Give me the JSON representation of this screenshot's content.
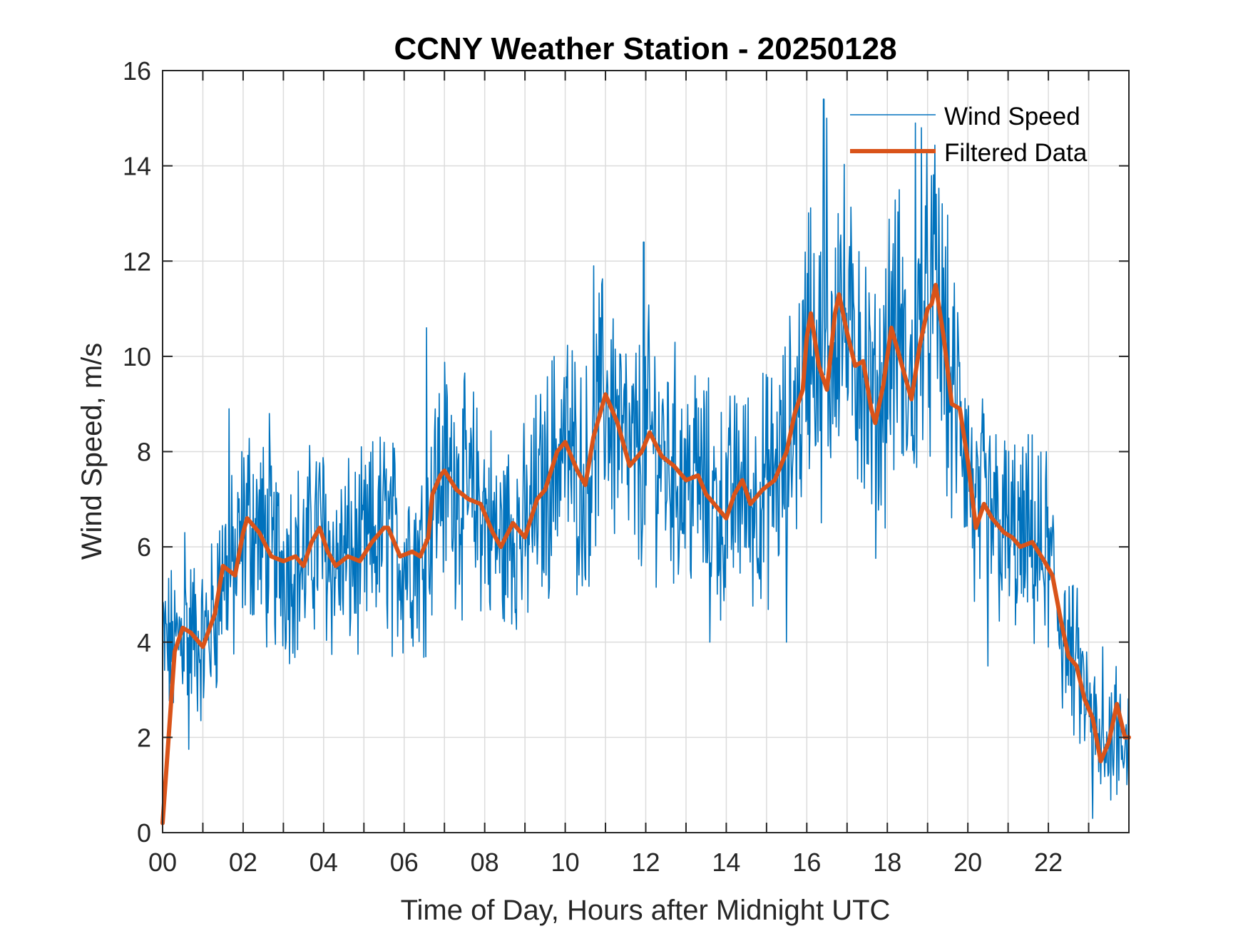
{
  "chart_data": {
    "type": "line",
    "title": "CCNY Weather Station - 20250128",
    "xlabel": "Time of Day, Hours after Midnight UTC",
    "ylabel": "Wind Speed, m/s",
    "xlim": [
      0,
      24
    ],
    "ylim": [
      0,
      16
    ],
    "grid": true,
    "x_grid_step_hours": 1,
    "x_ticks": [
      0,
      2,
      4,
      6,
      8,
      10,
      12,
      14,
      16,
      18,
      20,
      22
    ],
    "x_tick_labels": [
      "00",
      "02",
      "04",
      "06",
      "08",
      "10",
      "12",
      "14",
      "16",
      "18",
      "20",
      "22"
    ],
    "y_ticks": [
      0,
      2,
      4,
      6,
      8,
      10,
      12,
      14,
      16
    ],
    "y_tick_labels": [
      "0",
      "2",
      "4",
      "6",
      "8",
      "10",
      "12",
      "14",
      "16"
    ],
    "legend": {
      "position": "top-right",
      "entries": [
        "Wind Speed",
        "Filtered Data"
      ]
    },
    "colors": {
      "wind_speed": "#0072BD",
      "filtered": "#D95319",
      "axes": "#262626",
      "grid": "#dcdcdc"
    },
    "series": [
      {
        "name": "Wind Speed",
        "style": "thin",
        "note": "high-frequency raw samples; approximated as filtered curve plus noise, with notable extremes listed",
        "noise_amplitude_ms": 1.6,
        "notable_points": [
          {
            "x": 0.55,
            "y": 6.3
          },
          {
            "x": 0.65,
            "y": 1.75
          },
          {
            "x": 1.65,
            "y": 8.9
          },
          {
            "x": 2.65,
            "y": 8.8
          },
          {
            "x": 5.7,
            "y": 3.7
          },
          {
            "x": 6.55,
            "y": 10.6
          },
          {
            "x": 7.3,
            "y": 8.1
          },
          {
            "x": 10.7,
            "y": 11.9
          },
          {
            "x": 11.95,
            "y": 12.4
          },
          {
            "x": 13.6,
            "y": 4.0
          },
          {
            "x": 15.5,
            "y": 4.0
          },
          {
            "x": 16.42,
            "y": 15.4
          },
          {
            "x": 16.5,
            "y": 15.0
          },
          {
            "x": 17.3,
            "y": 12.2
          },
          {
            "x": 18.3,
            "y": 13.5
          },
          {
            "x": 18.7,
            "y": 14.9
          },
          {
            "x": 18.85,
            "y": 14.8
          },
          {
            "x": 19.45,
            "y": 12.3
          },
          {
            "x": 20.5,
            "y": 3.5
          },
          {
            "x": 21.95,
            "y": 8.0
          },
          {
            "x": 23.1,
            "y": 0.3
          },
          {
            "x": 23.35,
            "y": 3.9
          },
          {
            "x": 23.7,
            "y": 0.8
          }
        ]
      },
      {
        "name": "Filtered Data",
        "style": "thick",
        "x": [
          0.0,
          0.3,
          0.5,
          0.7,
          1.0,
          1.3,
          1.5,
          1.8,
          2.0,
          2.1,
          2.4,
          2.7,
          3.0,
          3.3,
          3.5,
          3.7,
          3.9,
          4.1,
          4.3,
          4.6,
          4.9,
          5.2,
          5.5,
          5.6,
          5.9,
          6.2,
          6.4,
          6.6,
          6.7,
          6.9,
          7.0,
          7.3,
          7.6,
          7.9,
          8.2,
          8.4,
          8.7,
          9.0,
          9.3,
          9.5,
          9.8,
          10.0,
          10.3,
          10.5,
          10.7,
          11.0,
          11.3,
          11.6,
          11.9,
          12.1,
          12.4,
          12.7,
          13.0,
          13.3,
          13.5,
          13.8,
          14.0,
          14.2,
          14.4,
          14.6,
          14.9,
          15.2,
          15.5,
          15.7,
          15.9,
          16.0,
          16.1,
          16.3,
          16.5,
          16.7,
          16.8,
          17.0,
          17.2,
          17.4,
          17.6,
          17.7,
          17.9,
          18.1,
          18.4,
          18.6,
          18.8,
          19.0,
          19.1,
          19.2,
          19.4,
          19.6,
          19.8,
          20.0,
          20.2,
          20.4,
          20.6,
          20.9,
          21.1,
          21.3,
          21.6,
          21.9,
          22.1,
          22.3,
          22.5,
          22.7,
          22.9,
          23.1,
          23.3,
          23.5,
          23.7,
          23.9,
          24.0
        ],
        "values": [
          0.2,
          3.8,
          4.3,
          4.2,
          3.9,
          4.6,
          5.6,
          5.4,
          6.3,
          6.6,
          6.3,
          5.8,
          5.7,
          5.8,
          5.6,
          6.1,
          6.4,
          5.9,
          5.6,
          5.8,
          5.7,
          6.1,
          6.4,
          6.4,
          5.8,
          5.9,
          5.8,
          6.2,
          7.1,
          7.5,
          7.6,
          7.2,
          7.0,
          6.9,
          6.3,
          6.0,
          6.5,
          6.2,
          7.0,
          7.2,
          8.0,
          8.2,
          7.6,
          7.3,
          8.3,
          9.2,
          8.6,
          7.7,
          8.0,
          8.4,
          7.9,
          7.7,
          7.4,
          7.5,
          7.1,
          6.8,
          6.6,
          7.1,
          7.4,
          6.9,
          7.2,
          7.4,
          8.0,
          8.8,
          9.3,
          10.4,
          10.9,
          9.8,
          9.3,
          10.9,
          11.3,
          10.5,
          9.8,
          9.9,
          8.9,
          8.6,
          9.4,
          10.6,
          9.7,
          9.1,
          10.2,
          11.0,
          11.1,
          11.5,
          10.4,
          9.0,
          8.9,
          7.8,
          6.4,
          6.9,
          6.6,
          6.3,
          6.2,
          6.0,
          6.1,
          5.7,
          5.4,
          4.5,
          3.7,
          3.5,
          2.8,
          2.4,
          1.5,
          1.9,
          2.7,
          2.0,
          2.0
        ]
      }
    ]
  }
}
